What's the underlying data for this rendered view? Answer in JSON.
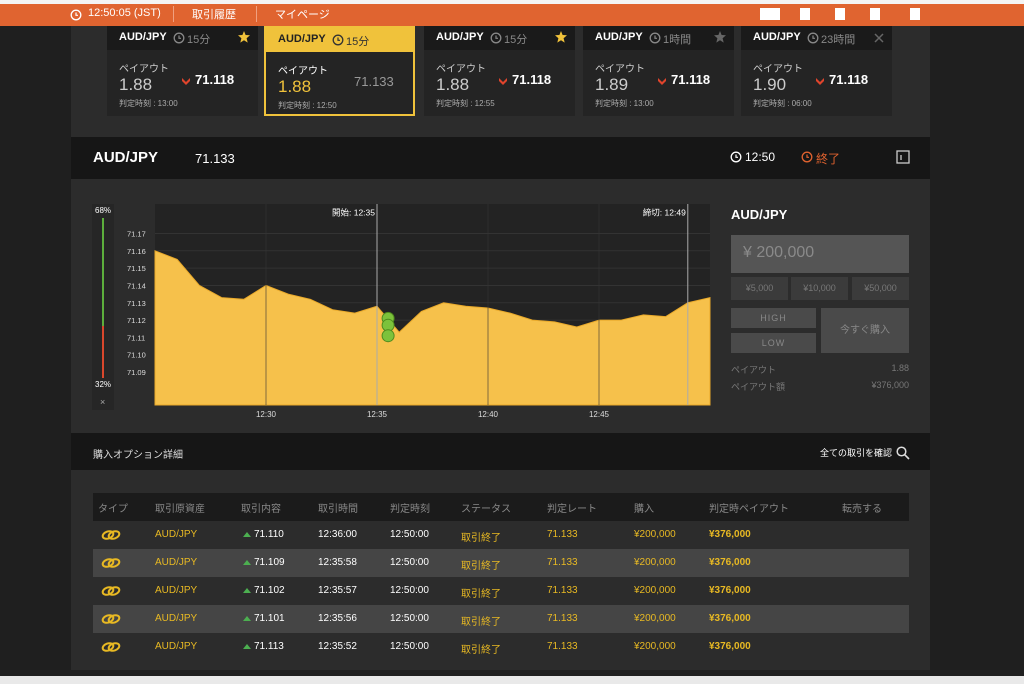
{
  "header": {
    "clock": "12:50:05 (JST)",
    "nav": [
      "取引履歴",
      "マイページ"
    ]
  },
  "option_cards": [
    {
      "pair": "AUD/JPY",
      "duration": "15分",
      "payout_label": "ペイアウト",
      "payout": "1.88",
      "rate": "71.118",
      "judge_time": "判定時刻 : 13:00",
      "selected": false
    },
    {
      "pair": "AUD/JPY",
      "duration": "15分",
      "payout_label": "ペイアウト",
      "payout": "1.88",
      "rate": "71.133",
      "judge_time": "判定時刻 : 12:50",
      "selected": true
    },
    {
      "pair": "AUD/JPY",
      "duration": "15分",
      "payout_label": "ペイアウト",
      "payout": "1.88",
      "rate": "71.118",
      "judge_time": "判定時刻 : 12:55",
      "selected": false
    },
    {
      "pair": "AUD/JPY",
      "duration": "1時間",
      "payout_label": "ペイアウト",
      "payout": "1.89",
      "rate": "71.118",
      "judge_time": "判定時刻 : 13:00",
      "selected": false
    },
    {
      "pair": "AUD/JPY",
      "duration": "23時間",
      "payout_label": "ペイアウト",
      "payout": "1.90",
      "rate": "71.118",
      "judge_time": "判定時刻 : 06:00",
      "selected": false
    }
  ],
  "asset_bar": {
    "pair": "AUD/JPY",
    "rate": "71.133",
    "time": "12:50",
    "status": "終了"
  },
  "sentiment": {
    "high": "68%",
    "low": "32%",
    "close": "×"
  },
  "price_chart": {
    "type": "area",
    "color": "#f6c14b",
    "categories": [
      null,
      null,
      null,
      null,
      null,
      "12:30",
      null,
      null,
      null,
      null,
      "12:35",
      null,
      null,
      null,
      null,
      "12:40",
      null,
      null,
      null,
      null,
      "12:45",
      null,
      null,
      null,
      null,
      null
    ],
    "values": [
      71.16,
      71.155,
      71.14,
      71.133,
      71.132,
      71.14,
      71.135,
      71.132,
      71.126,
      71.124,
      71.128,
      71.113,
      71.125,
      71.13,
      71.128,
      71.127,
      71.124,
      71.12,
      71.119,
      71.116,
      71.12,
      71.12,
      71.123,
      71.122,
      71.13,
      71.133
    ],
    "ylim": [
      71.071,
      71.187
    ],
    "yticks": [
      71.09,
      {
        "value": 71.1,
        "label": "71.10"
      },
      71.11,
      71.12,
      71.13,
      71.14,
      71.15,
      71.16,
      71.17
    ],
    "grid": true,
    "annotations": [
      "開始: 12:35",
      "締切: 12:49"
    ]
  },
  "order_panel": {
    "pair": "AUD/JPY",
    "amount": "¥ 200,000",
    "quick_amounts": [
      "¥5,000",
      "¥10,000",
      "¥50,000"
    ],
    "high": "HIGH",
    "low": "LOW",
    "buy_now": "今すぐ購入",
    "payout_label": "ペイアウト",
    "payout": "1.88",
    "payout_amount_label": "ペイアウト額",
    "payout_amount": "¥376,000"
  },
  "details": {
    "title": "購入オプション詳細",
    "view_all": "全ての取引を確認",
    "columns": [
      "タイプ",
      "取引原資産",
      "取引内容",
      "取引時間",
      "判定時刻",
      "ステータス",
      "判定レート",
      "購入",
      "判定時ペイアウト",
      "転売する"
    ],
    "rows": [
      [
        "AUD/JPY",
        "71.110",
        "12:36:00",
        "12:50:00",
        "取引終了",
        "71.133",
        "¥200,000",
        "¥376,000"
      ],
      [
        "AUD/JPY",
        "71.109",
        "12:35:58",
        "12:50:00",
        "取引終了",
        "71.133",
        "¥200,000",
        "¥376,000"
      ],
      [
        "AUD/JPY",
        "71.102",
        "12:35:57",
        "12:50:00",
        "取引終了",
        "71.133",
        "¥200,000",
        "¥376,000"
      ],
      [
        "AUD/JPY",
        "71.101",
        "12:35:56",
        "12:50:00",
        "取引終了",
        "71.133",
        "¥200,000",
        "¥376,000"
      ],
      [
        "AUD/JPY",
        "71.113",
        "12:35:52",
        "12:50:00",
        "取引終了",
        "71.133",
        "¥200,000",
        "¥376,000"
      ]
    ]
  }
}
